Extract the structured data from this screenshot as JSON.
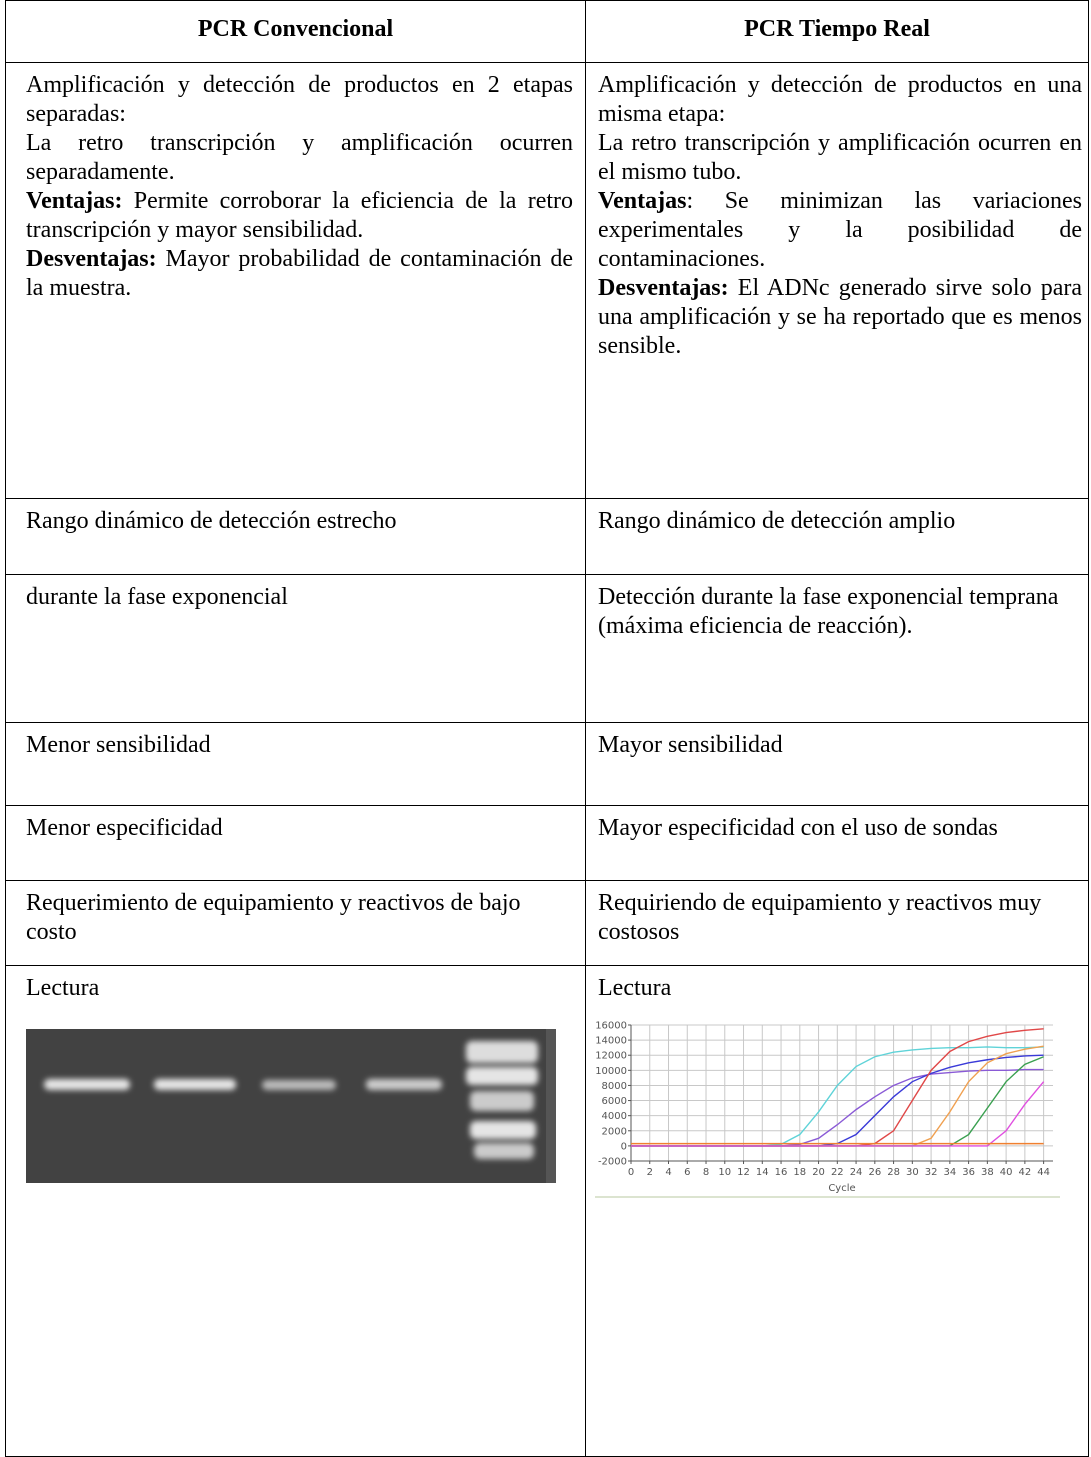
{
  "table": {
    "header": [
      "PCR Convencional",
      "PCR Tiempo Real"
    ],
    "rows": [
      [
        {
          "paragraphs": [
            "Amplificación y detección de productos en 2 etapas separadas:",
            "La retro transcripción y amplificación ocurren separadamente.",
            {
              "label": "Ventajas:",
              "text": "Permite corroborar la eficiencia de la retro transcripción y mayor sensibilidad."
            },
            {
              "label": "Desventajas:",
              "text": "Mayor probabilidad de contaminación de la muestra."
            }
          ]
        },
        {
          "paragraphs": [
            "Amplificación y detección de productos en una misma etapa:",
            "La retro transcripción y amplificación ocurren en el mismo tubo.",
            {
              "label": "Ventajas",
              "text": ":  Se minimizan las variaciones experimentales y la posibilidad de contaminaciones."
            },
            {
              "label": "Desventajas:",
              "text": "El ADNc generado sirve solo para una amplificación y se ha reportado que es menos sensible."
            }
          ]
        }
      ],
      [
        "Rango dinámico de detección estrecho",
        "Rango dinámico de detección amplio"
      ],
      [
        "durante la fase exponencial",
        "Detección durante la fase exponencial temprana (máxima eficiencia de reacción)."
      ],
      [
        "Menor sensibilidad",
        "Mayor sensibilidad"
      ],
      [
        "Menor especificidad",
        "Mayor especificidad con el uso de sondas"
      ],
      [
        "Requerimiento de equipamiento y reactivos de bajo costo",
        "Requiriendo de equipamiento y reactivos muy costosos"
      ],
      [
        {
          "text": "Lectura"
        },
        {
          "text": "Lectura",
          "chart": {
            "type": "line",
            "xlabel": "Cycle",
            "x": [
              0,
              2,
              4,
              6,
              8,
              10,
              12,
              14,
              16,
              18,
              20,
              22,
              24,
              26,
              28,
              30,
              32,
              34,
              36,
              38,
              40,
              42,
              44
            ],
            "xlim": [
              0,
              45
            ],
            "ylim": [
              -2000,
              16000
            ],
            "xticks": [
              0,
              2,
              4,
              6,
              8,
              10,
              12,
              14,
              16,
              18,
              20,
              22,
              24,
              26,
              28,
              30,
              32,
              34,
              36,
              38,
              40,
              42,
              44
            ],
            "yticks": [
              -2000,
              0,
              2000,
              4000,
              6000,
              8000,
              10000,
              12000,
              14000,
              16000
            ],
            "grid": true,
            "series": [
              {
                "color": "#5fd3d8",
                "values": [
                  0,
                  0,
                  0,
                  0,
                  0,
                  0,
                  0,
                  0,
                  200,
                  1500,
                  4500,
                  8000,
                  10500,
                  11800,
                  12400,
                  12700,
                  12900,
                  13000,
                  13000,
                  13100,
                  13000,
                  13000,
                  13100
                ]
              },
              {
                "color": "#8a5ad6",
                "values": [
                  0,
                  0,
                  0,
                  0,
                  0,
                  0,
                  0,
                  0,
                  0,
                  200,
                  1000,
                  2800,
                  4800,
                  6500,
                  8000,
                  9000,
                  9500,
                  9700,
                  9900,
                  10000,
                  10000,
                  10100,
                  10100
                ]
              },
              {
                "color": "#3a3ad8",
                "values": [
                  0,
                  0,
                  0,
                  0,
                  0,
                  0,
                  0,
                  0,
                  0,
                  0,
                  0,
                  300,
                  1500,
                  4000,
                  6500,
                  8500,
                  9600,
                  10400,
                  11000,
                  11400,
                  11700,
                  11900,
                  12000
                ]
              },
              {
                "color": "#e04848",
                "values": [
                  0,
                  0,
                  0,
                  0,
                  0,
                  0,
                  0,
                  0,
                  0,
                  0,
                  0,
                  0,
                  0,
                  300,
                  2000,
                  6000,
                  10000,
                  12500,
                  13800,
                  14500,
                  15000,
                  15300,
                  15500
                ]
              },
              {
                "color": "#f0a050",
                "values": [
                  0,
                  0,
                  0,
                  0,
                  0,
                  0,
                  0,
                  0,
                  0,
                  0,
                  0,
                  0,
                  0,
                  0,
                  0,
                  0,
                  1000,
                  4500,
                  8500,
                  11000,
                  12200,
                  12800,
                  13200
                ]
              },
              {
                "color": "#3aa050",
                "values": [
                  0,
                  0,
                  0,
                  0,
                  0,
                  0,
                  0,
                  0,
                  0,
                  0,
                  0,
                  0,
                  0,
                  0,
                  0,
                  0,
                  0,
                  0,
                  1500,
                  5000,
                  8500,
                  10800,
                  11800
                ]
              },
              {
                "color": "#e050e0",
                "values": [
                  0,
                  0,
                  0,
                  0,
                  0,
                  0,
                  0,
                  0,
                  0,
                  0,
                  0,
                  0,
                  0,
                  0,
                  0,
                  0,
                  0,
                  0,
                  0,
                  0,
                  2000,
                  5500,
                  8500
                ]
              },
              {
                "color": "#f08030",
                "values": [
                  300,
                  300,
                  300,
                  300,
                  300,
                  300,
                  300,
                  300,
                  300,
                  300,
                  300,
                  300,
                  300,
                  300,
                  300,
                  300,
                  300,
                  300,
                  300,
                  300,
                  300,
                  300,
                  300
                ]
              }
            ]
          }
        }
      ]
    ]
  }
}
